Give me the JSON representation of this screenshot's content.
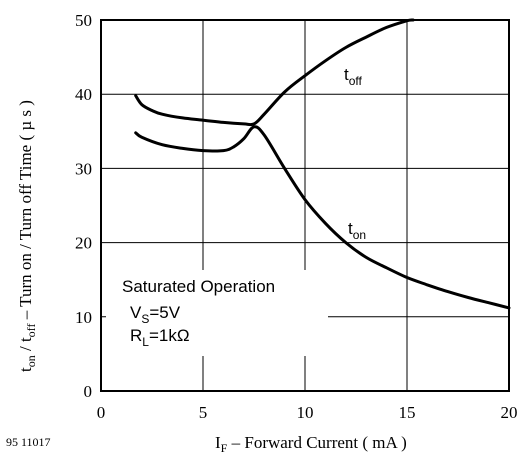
{
  "chart_data": {
    "type": "line",
    "x_axis": {
      "label_parts": {
        "main": "I",
        "sub": "F",
        "rest": " – Forward Current ( mA )"
      },
      "min": 0,
      "max": 20,
      "ticks": [
        0,
        5,
        10,
        15,
        20
      ]
    },
    "y_axis": {
      "label_parts": [
        {
          "t": "t",
          "s": "on"
        },
        {
          "t": " / t",
          "s": "off"
        },
        {
          "t": "  – Turn on / Turn off Time ( µ s )",
          "s": ""
        }
      ],
      "min": 0,
      "max": 50,
      "ticks": [
        0,
        10,
        20,
        30,
        40,
        50
      ]
    },
    "grid": true,
    "series": [
      {
        "name_main": "t",
        "name_sub": "off",
        "x": [
          1.7,
          2,
          2.5,
          3,
          4,
          5,
          6,
          7,
          7.5,
          8,
          9,
          10,
          11,
          12,
          13,
          14,
          15,
          15.3
        ],
        "y": [
          39.8,
          38.6,
          37.8,
          37.3,
          36.8,
          36.5,
          36.2,
          36.0,
          36.0,
          37.3,
          40.3,
          42.5,
          44.5,
          46.3,
          47.7,
          49.0,
          49.9,
          50.0
        ]
      },
      {
        "name_main": "t",
        "name_sub": "on",
        "x": [
          1.7,
          2,
          3,
          4,
          5,
          6,
          6.5,
          7,
          7.5,
          8,
          9,
          10,
          11,
          12,
          13,
          14,
          15,
          16,
          17,
          18,
          19,
          20
        ],
        "y": [
          34.8,
          34.2,
          33.2,
          32.7,
          32.4,
          32.4,
          32.9,
          34.0,
          35.6,
          34.5,
          30.0,
          25.8,
          22.6,
          20.0,
          18.0,
          16.6,
          15.3,
          14.3,
          13.4,
          12.6,
          11.9,
          11.2
        ]
      }
    ],
    "annotation": {
      "line1": "Saturated Operation",
      "line2_main": "V",
      "line2_sub": "S",
      "line2_rest": "=5V",
      "line3_main": "R",
      "line3_sub": "L",
      "line3_rest": "=1kΩ"
    },
    "figure_code": "95 11017"
  }
}
